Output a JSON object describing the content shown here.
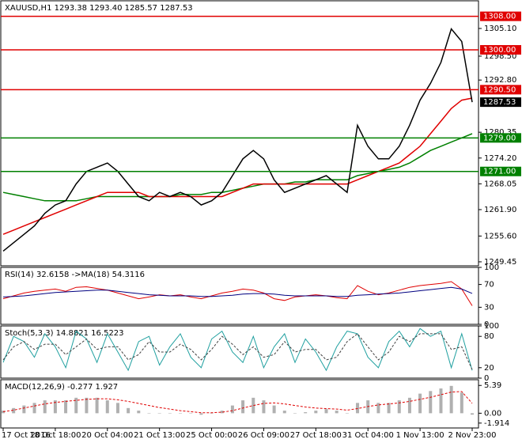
{
  "chart_data": [
    {
      "type": "line",
      "title": "XAUUSD,H1  1293.38 1293.40 1285.57 1287.53",
      "categories": [
        "17 Oct 2016",
        null,
        null,
        null,
        null,
        "18 Oct 18:00",
        null,
        null,
        null,
        null,
        "20 Oct 04:00",
        null,
        null,
        null,
        null,
        "21 Oct 13:00",
        null,
        null,
        null,
        null,
        "25 Oct 00:00",
        null,
        null,
        null,
        null,
        "26 Oct 09:00",
        null,
        null,
        null,
        null,
        "27 Oct 18:00",
        null,
        null,
        null,
        null,
        "31 Oct 04:00",
        null,
        null,
        null,
        null,
        "1 Nov 13:00",
        null,
        null,
        null,
        null,
        "2 Nov 23:00"
      ],
      "ylim": [
        1248.5,
        1311.7
      ],
      "yticks": [
        {
          "value": 1305.1,
          "label": "1305.10"
        },
        {
          "value": 1298.5,
          "label": "1298.50"
        },
        {
          "value": 1292.8,
          "label": "1292.80"
        },
        {
          "value": 1280.35,
          "label": "1280.35"
        },
        {
          "value": 1274.2,
          "label": "1274.20"
        },
        {
          "value": 1268.05,
          "label": "1268.05"
        },
        {
          "value": 1261.9,
          "label": "1261.90"
        },
        {
          "value": 1255.6,
          "label": "1255.60"
        },
        {
          "value": 1249.45,
          "label": "1249.45"
        }
      ],
      "levels": [
        {
          "value": 1308,
          "label": "1308.00",
          "color": "#e00000"
        },
        {
          "value": 1300,
          "label": "1300.00",
          "color": "#e00000"
        },
        {
          "value": 1290.5,
          "label": "1290.50",
          "color": "#e00000"
        },
        {
          "value": 1279,
          "label": "1279.00",
          "color": "#008000"
        },
        {
          "value": 1271,
          "label": "1271.00",
          "color": "#008000"
        }
      ],
      "last_price": {
        "value": 1287.53,
        "label": "1287.53"
      },
      "series": [
        {
          "color": "#008000",
          "values": [
            1266,
            1265.5,
            1265,
            1264.5,
            1264,
            1264,
            1264,
            1264,
            1264.5,
            1265,
            1265,
            1265,
            1265,
            1265,
            1265,
            1265,
            1265,
            1265.5,
            1265.5,
            1265.5,
            1266,
            1266,
            1266.5,
            1267,
            1267.5,
            1268,
            1268,
            1268,
            1268.5,
            1268.5,
            1269,
            1269,
            1269,
            1269,
            1270,
            1270.5,
            1271,
            1271.5,
            1272,
            1273,
            1274.5,
            1276,
            1277,
            1278,
            1279,
            1280
          ]
        },
        {
          "color": "#e00000",
          "values": [
            1256,
            1257,
            1258,
            1259,
            1260,
            1261,
            1262,
            1263,
            1264,
            1265,
            1266,
            1266,
            1266,
            1266,
            1265,
            1265,
            1265,
            1265,
            1265,
            1265,
            1265,
            1265,
            1266,
            1267,
            1268,
            1268,
            1268,
            1268,
            1268,
            1268,
            1268,
            1268,
            1268,
            1268,
            1269,
            1270,
            1271,
            1272,
            1273,
            1275,
            1277,
            1280,
            1283,
            1286,
            1288,
            1288.5
          ]
        },
        {
          "color": "#000000",
          "values": [
            1252,
            1254,
            1256,
            1258,
            1261,
            1263,
            1264,
            1268,
            1271,
            1272,
            1273,
            1271,
            1268,
            1265,
            1264,
            1266,
            1265,
            1266,
            1265,
            1263,
            1264,
            1266,
            1270,
            1274,
            1276,
            1274,
            1269,
            1266,
            1267,
            1268,
            1269,
            1270,
            1268,
            1266,
            1282,
            1277,
            1274,
            1274,
            1277,
            1282,
            1288,
            1292,
            1297,
            1305,
            1302,
            1287.53
          ]
        }
      ]
    },
    {
      "type": "line",
      "title": "RSI(14) 32.6158 ->MA(18) 54.3116",
      "ylim": [
        0,
        100
      ],
      "yticks": [
        100,
        70,
        30,
        0
      ],
      "series": [
        {
          "color": "#e00000",
          "values": [
            45,
            50,
            55,
            58,
            60,
            62,
            58,
            65,
            66,
            63,
            60,
            55,
            50,
            45,
            48,
            52,
            50,
            52,
            48,
            45,
            50,
            55,
            58,
            62,
            60,
            55,
            45,
            42,
            48,
            50,
            52,
            50,
            47,
            45,
            68,
            58,
            52,
            55,
            60,
            65,
            68,
            70,
            72,
            75,
            62,
            32.6
          ]
        },
        {
          "color": "#000080",
          "values": [
            48,
            49,
            50,
            52,
            54,
            56,
            57,
            58,
            59,
            60,
            60,
            58,
            56,
            54,
            52,
            51,
            50,
            50,
            50,
            49,
            49,
            50,
            51,
            53,
            54,
            54,
            53,
            51,
            50,
            50,
            50,
            50,
            49,
            49,
            51,
            52,
            53,
            54,
            55,
            57,
            59,
            61,
            63,
            65,
            62,
            54.3
          ]
        }
      ]
    },
    {
      "type": "line",
      "title": "Stoch(5,3,3) 14.8821 16.5223",
      "ylim": [
        0,
        100
      ],
      "yticks": [
        100,
        80,
        20,
        0
      ],
      "series": [
        {
          "color": "#20a0a0",
          "values": [
            30,
            80,
            70,
            40,
            85,
            60,
            20,
            90,
            75,
            30,
            85,
            50,
            15,
            70,
            80,
            25,
            60,
            85,
            40,
            20,
            75,
            90,
            50,
            30,
            80,
            20,
            60,
            85,
            30,
            75,
            50,
            15,
            60,
            90,
            85,
            40,
            20,
            70,
            90,
            60,
            95,
            80,
            90,
            20,
            85,
            14.9
          ]
        },
        {
          "color": "#404040",
          "dashed": true,
          "values": [
            35,
            60,
            70,
            55,
            65,
            65,
            45,
            60,
            75,
            55,
            60,
            60,
            35,
            45,
            70,
            50,
            50,
            65,
            55,
            35,
            55,
            80,
            65,
            45,
            60,
            40,
            45,
            70,
            50,
            55,
            55,
            35,
            40,
            70,
            85,
            60,
            35,
            50,
            80,
            70,
            85,
            85,
            85,
            55,
            60,
            16.5
          ]
        }
      ]
    },
    {
      "type": "bar",
      "title": "MACD(12,26,9) -0.277 1.927",
      "ylim": [
        -2.86,
        6.5
      ],
      "yticks": [
        5.39,
        {
          "value": 0,
          "label": "0.00"
        },
        -1.914
      ],
      "color": "#b0b0b0",
      "values": [
        0.5,
        1,
        1.5,
        2,
        2.5,
        2.5,
        2.5,
        3,
        3,
        3,
        2.5,
        2,
        1,
        0.5,
        0,
        0,
        0,
        0,
        0,
        -0.3,
        0,
        0.5,
        1.5,
        2.5,
        3,
        2.5,
        1.5,
        0.5,
        0,
        0.2,
        0.5,
        0.8,
        0.5,
        0,
        2,
        2.5,
        2,
        2,
        2.5,
        3,
        3.8,
        4.3,
        4.8,
        5.3,
        4,
        -0.277
      ],
      "series": [
        {
          "color": "#e00000",
          "dashed": true,
          "values": [
            0.3,
            0.6,
            1,
            1.4,
            1.8,
            2.1,
            2.3,
            2.5,
            2.7,
            2.8,
            2.8,
            2.6,
            2.3,
            1.9,
            1.5,
            1.1,
            0.8,
            0.5,
            0.3,
            0.1,
            0.1,
            0.2,
            0.5,
            1,
            1.5,
            1.9,
            2,
            1.8,
            1.5,
            1.2,
            1,
            0.9,
            0.8,
            0.6,
            0.9,
            1.3,
            1.6,
            1.8,
            2,
            2.3,
            2.7,
            3.1,
            3.6,
            4.1,
            4.2,
            1.927
          ]
        }
      ]
    }
  ]
}
